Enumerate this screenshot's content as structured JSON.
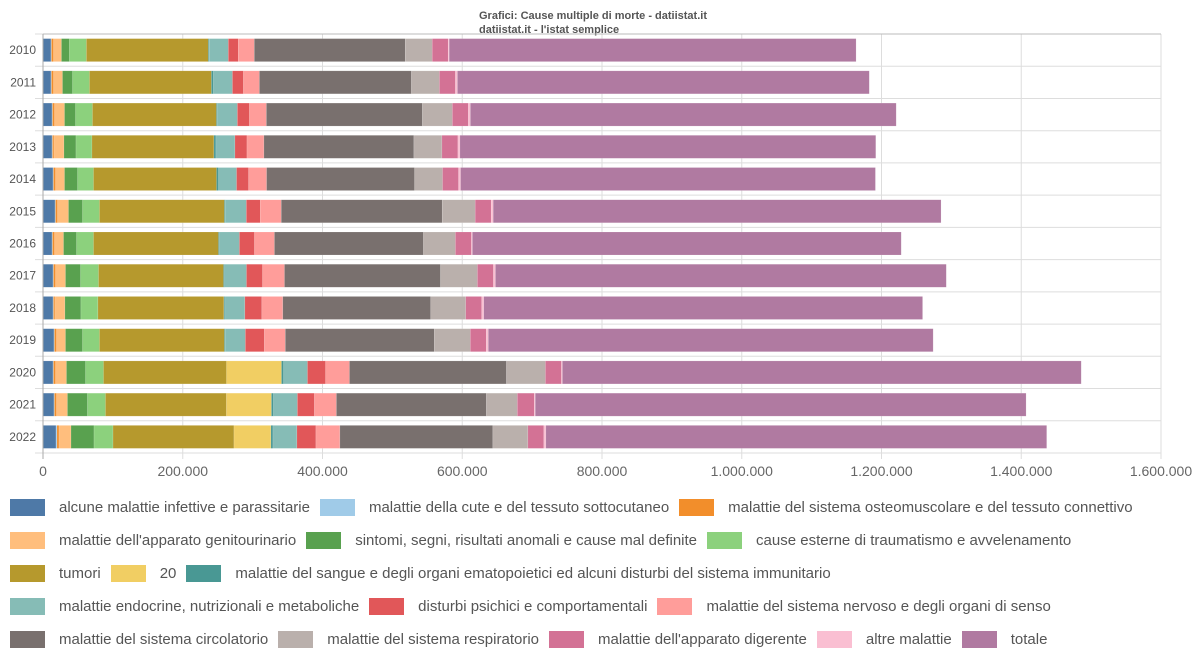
{
  "header": {
    "title": "Grafici: Cause multiple di morte - datiistat.it",
    "subtitle": "datiistat.it - l'istat semplice"
  },
  "chart_data": {
    "type": "bar",
    "orientation": "horizontal",
    "stacked": true,
    "title": "Grafici: Cause multiple di morte - datiistat.it",
    "subtitle": "datiistat.it - l'istat semplice",
    "xlabel": "",
    "ylabel": "",
    "xlim": [
      0,
      1600000
    ],
    "x_ticks": [
      "0",
      "200.000",
      "400.000",
      "600.000",
      "800.000",
      "1.000.000",
      "1.200.000",
      "1.400.000",
      "1.600.000"
    ],
    "x_tick_values": [
      0,
      200000,
      400000,
      600000,
      800000,
      1000000,
      1200000,
      1400000,
      1600000
    ],
    "grid": true,
    "legend_position": "bottom",
    "categories": [
      "2010",
      "2011",
      "2012",
      "2013",
      "2014",
      "2015",
      "2016",
      "2017",
      "2018",
      "2019",
      "2020",
      "2021",
      "2022"
    ],
    "series": [
      {
        "name": "alcune malattie infettive e parassitarie",
        "color": "#4e79a7",
        "values": [
          11400,
          11400,
          12900,
          12900,
          14300,
          17200,
          12900,
          14300,
          14300,
          15700,
          14300,
          15700,
          18600
        ]
      },
      {
        "name": "malattie della cute e del tessuto sottocutaneo",
        "color": "#a0cbe8",
        "values": [
          700,
          700,
          700,
          700,
          700,
          700,
          700,
          700,
          700,
          700,
          700,
          700,
          1400
        ]
      },
      {
        "name": "malattie del sistema osteomuscolare e del tessuto connettivo",
        "color": "#f28e2b",
        "values": [
          2900,
          2900,
          2900,
          2100,
          2900,
          2900,
          2900,
          2900,
          2100,
          2900,
          2900,
          2900,
          2900
        ]
      },
      {
        "name": "malattie dell'apparato genitourinario",
        "color": "#ffbe7d",
        "values": [
          11400,
          12900,
          14300,
          14300,
          12900,
          15700,
          12900,
          14300,
          14300,
          12900,
          15700,
          15700,
          17200
        ]
      },
      {
        "name": "sintomi, segni, risultati anomali e cause mal definite",
        "color": "#59a14f",
        "values": [
          11400,
          14300,
          15700,
          17200,
          18600,
          20000,
          18600,
          21500,
          22900,
          24300,
          27200,
          28600,
          32900
        ]
      },
      {
        "name": "cause esterne di traumatismo e avvelenamento",
        "color": "#8cd17d",
        "values": [
          24300,
          24300,
          24300,
          22900,
          22900,
          24300,
          24300,
          25800,
          24300,
          24300,
          25800,
          25800,
          27200
        ]
      },
      {
        "name": "tumori",
        "color": "#b6992d",
        "values": [
          174500,
          174500,
          177400,
          174500,
          176000,
          178800,
          178800,
          178800,
          180300,
          178800,
          176000,
          173100,
          173100
        ]
      },
      {
        "name": "20",
        "color": "#f1ce63",
        "values": [
          0,
          0,
          0,
          0,
          0,
          0,
          0,
          0,
          0,
          0,
          78700,
          64400,
          52900
        ]
      },
      {
        "name": "malattie del sangue e degli organi ematopoietici ed alcuni disturbi del sistema immunitario",
        "color": "#499894",
        "values": [
          1400,
          2900,
          1400,
          2900,
          2900,
          1400,
          1400,
          1400,
          1400,
          1400,
          2900,
          2900,
          2900
        ]
      },
      {
        "name": "malattie endocrine, nutrizionali e metaboliche",
        "color": "#86bcb6",
        "values": [
          27200,
          27200,
          28600,
          27200,
          25800,
          30000,
          28600,
          31500,
          28600,
          28600,
          34300,
          34300,
          34300
        ]
      },
      {
        "name": "disturbi psichici e comportamentali",
        "color": "#e15759",
        "values": [
          14300,
          15700,
          17200,
          17200,
          17200,
          20000,
          21500,
          22900,
          24300,
          27200,
          25800,
          24300,
          27200
        ]
      },
      {
        "name": "malattie del sistema nervoso e degli organi di senso",
        "color": "#ff9d9a",
        "values": [
          22900,
          22900,
          24300,
          24300,
          25800,
          30000,
          28600,
          31500,
          30000,
          30000,
          34300,
          31500,
          34300
        ]
      },
      {
        "name": "malattie del sistema circolatorio",
        "color": "#79706e",
        "values": [
          216000,
          217500,
          223200,
          214600,
          211700,
          230300,
          213200,
          223200,
          211700,
          213200,
          224600,
          214600,
          218900
        ]
      },
      {
        "name": "malattie del sistema respiratorio",
        "color": "#bab0ac",
        "values": [
          38600,
          40100,
          42900,
          40100,
          40100,
          47200,
          45800,
          52900,
          50100,
          51500,
          55800,
          44300,
          50100
        ]
      },
      {
        "name": "malattie dell'apparato digerente",
        "color": "#d37295",
        "values": [
          22900,
          22900,
          22900,
          22900,
          22900,
          22900,
          22900,
          22900,
          22900,
          22900,
          22900,
          24300,
          22900
        ]
      },
      {
        "name": "altre malattie",
        "color": "#fabfd2",
        "values": [
          1400,
          2900,
          2900,
          2900,
          2900,
          2900,
          1400,
          2900,
          2900,
          2900,
          1400,
          1400,
          2900
        ]
      },
      {
        "name": "totale",
        "color": "#b07aa1",
        "values": [
          582300,
          589400,
          609400,
          595100,
          593700,
          640900,
          613700,
          645200,
          628000,
          636600,
          742500,
          702400,
          716700
        ]
      }
    ]
  }
}
